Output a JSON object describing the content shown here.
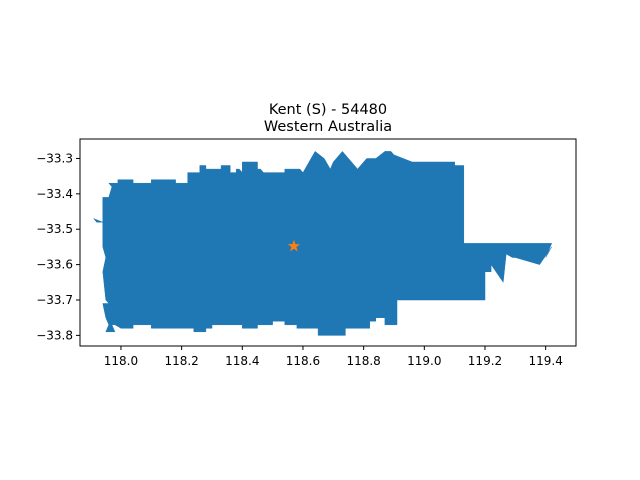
{
  "title": {
    "line1": "Kent (S) - 54480",
    "line2": "Western Australia"
  },
  "chart_data": {
    "type": "map",
    "xlim": [
      117.865,
      119.5
    ],
    "ylim": [
      -33.83,
      -33.245
    ],
    "xticks": [
      118.0,
      118.2,
      118.4,
      118.6,
      118.8,
      119.0,
      119.2,
      119.4
    ],
    "xtick_labels": [
      "118.0",
      "118.2",
      "118.4",
      "118.6",
      "118.8",
      "119.0",
      "119.2",
      "119.4"
    ],
    "yticks": [
      -33.3,
      -33.4,
      -33.5,
      -33.6,
      -33.7,
      -33.8
    ],
    "ytick_labels": [
      "−33.3",
      "−33.4",
      "−33.5",
      "−33.6",
      "−33.7",
      "−33.8"
    ],
    "grid": false,
    "region": {
      "name": "Kent (S) - 54480",
      "fill": "#1f77b4",
      "outline": [
        [
          117.91,
          -33.47
        ],
        [
          117.94,
          -33.48
        ],
        [
          117.94,
          -33.41
        ],
        [
          117.96,
          -33.41
        ],
        [
          117.97,
          -33.38
        ],
        [
          117.96,
          -33.37
        ],
        [
          117.99,
          -33.37
        ],
        [
          117.99,
          -33.36
        ],
        [
          118.04,
          -33.36
        ],
        [
          118.04,
          -33.37
        ],
        [
          118.1,
          -33.37
        ],
        [
          118.1,
          -33.36
        ],
        [
          118.18,
          -33.36
        ],
        [
          118.18,
          -33.37
        ],
        [
          118.22,
          -33.37
        ],
        [
          118.22,
          -33.34
        ],
        [
          118.26,
          -33.34
        ],
        [
          118.26,
          -33.32
        ],
        [
          118.28,
          -33.32
        ],
        [
          118.28,
          -33.33
        ],
        [
          118.33,
          -33.33
        ],
        [
          118.33,
          -33.32
        ],
        [
          118.36,
          -33.32
        ],
        [
          118.36,
          -33.34
        ],
        [
          118.38,
          -33.34
        ],
        [
          118.38,
          -33.33
        ],
        [
          118.39,
          -33.33
        ],
        [
          118.39,
          -33.33
        ],
        [
          118.4,
          -33.34
        ],
        [
          118.4,
          -33.33
        ],
        [
          118.4,
          -33.31
        ],
        [
          118.45,
          -33.31
        ],
        [
          118.45,
          -33.33
        ],
        [
          118.46,
          -33.33
        ],
        [
          118.47,
          -33.34
        ],
        [
          118.54,
          -33.34
        ],
        [
          118.54,
          -33.33
        ],
        [
          118.58,
          -33.33
        ],
        [
          118.59,
          -33.33
        ],
        [
          118.6,
          -33.34
        ],
        [
          118.64,
          -33.28
        ],
        [
          118.67,
          -33.3
        ],
        [
          118.69,
          -33.33
        ],
        [
          118.7,
          -33.31
        ],
        [
          118.71,
          -33.3
        ],
        [
          118.73,
          -33.28
        ],
        [
          118.76,
          -33.31
        ],
        [
          118.78,
          -33.33
        ],
        [
          118.79,
          -33.32
        ],
        [
          118.81,
          -33.3
        ],
        [
          118.84,
          -33.3
        ],
        [
          118.87,
          -33.28
        ],
        [
          118.89,
          -33.28
        ],
        [
          118.9,
          -33.29
        ],
        [
          118.96,
          -33.31
        ],
        [
          118.97,
          -33.31
        ],
        [
          118.98,
          -33.31
        ],
        [
          119.02,
          -33.31
        ],
        [
          119.02,
          -33.31
        ],
        [
          119.05,
          -33.31
        ],
        [
          119.08,
          -33.31
        ],
        [
          119.1,
          -33.31
        ],
        [
          119.1,
          -33.32
        ],
        [
          119.13,
          -33.32
        ],
        [
          119.13,
          -33.54
        ],
        [
          119.42,
          -33.54
        ],
        [
          119.4,
          -33.58
        ],
        [
          119.42,
          -33.55
        ],
        [
          119.38,
          -33.6
        ],
        [
          119.3,
          -33.58
        ],
        [
          119.29,
          -33.58
        ],
        [
          119.27,
          -33.57
        ],
        [
          119.26,
          -33.65
        ],
        [
          119.22,
          -33.6
        ],
        [
          119.22,
          -33.62
        ],
        [
          119.2,
          -33.62
        ],
        [
          119.2,
          -33.7
        ],
        [
          119.1,
          -33.7
        ],
        [
          118.99,
          -33.7
        ],
        [
          118.98,
          -33.7
        ],
        [
          118.91,
          -33.7
        ],
        [
          118.91,
          -33.77
        ],
        [
          118.87,
          -33.77
        ],
        [
          118.87,
          -33.75
        ],
        [
          118.84,
          -33.75
        ],
        [
          118.84,
          -33.76
        ],
        [
          118.82,
          -33.76
        ],
        [
          118.82,
          -33.78
        ],
        [
          118.79,
          -33.78
        ],
        [
          118.79,
          -33.78
        ],
        [
          118.74,
          -33.78
        ],
        [
          118.74,
          -33.8
        ],
        [
          118.65,
          -33.8
        ],
        [
          118.65,
          -33.78
        ],
        [
          118.58,
          -33.78
        ],
        [
          118.58,
          -33.77
        ],
        [
          118.54,
          -33.77
        ],
        [
          118.54,
          -33.76
        ],
        [
          118.5,
          -33.76
        ],
        [
          118.5,
          -33.77
        ],
        [
          118.45,
          -33.77
        ],
        [
          118.45,
          -33.78
        ],
        [
          118.4,
          -33.78
        ],
        [
          118.4,
          -33.77
        ],
        [
          118.35,
          -33.77
        ],
        [
          118.35,
          -33.77
        ],
        [
          118.3,
          -33.77
        ],
        [
          118.3,
          -33.78
        ],
        [
          118.28,
          -33.78
        ],
        [
          118.28,
          -33.79
        ],
        [
          118.24,
          -33.79
        ],
        [
          118.24,
          -33.78
        ],
        [
          118.22,
          -33.78
        ],
        [
          118.22,
          -33.78
        ],
        [
          118.2,
          -33.78
        ],
        [
          118.2,
          -33.78
        ],
        [
          118.15,
          -33.78
        ],
        [
          118.14,
          -33.78
        ],
        [
          118.1,
          -33.78
        ],
        [
          118.1,
          -33.77
        ],
        [
          118.07,
          -33.77
        ],
        [
          118.04,
          -33.77
        ],
        [
          118.04,
          -33.78
        ],
        [
          118.0,
          -33.78
        ],
        [
          118.0,
          -33.78
        ],
        [
          117.98,
          -33.77
        ],
        [
          117.97,
          -33.77
        ],
        [
          117.98,
          -33.79
        ],
        [
          117.95,
          -33.79
        ],
        [
          117.96,
          -33.77
        ],
        [
          117.95,
          -33.75
        ],
        [
          117.94,
          -33.71
        ],
        [
          117.96,
          -33.71
        ],
        [
          117.95,
          -33.7
        ],
        [
          117.94,
          -33.62
        ],
        [
          117.95,
          -33.58
        ],
        [
          117.94,
          -33.55
        ],
        [
          117.94,
          -33.48
        ],
        [
          117.92,
          -33.48
        ],
        [
          117.91,
          -33.47
        ]
      ]
    },
    "marker": {
      "x": 118.57,
      "y": -33.548,
      "shape": "star",
      "color": "#ff7f0e"
    }
  }
}
